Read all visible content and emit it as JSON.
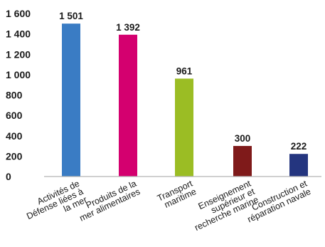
{
  "chart_data": {
    "type": "bar",
    "title": "",
    "xlabel": "",
    "ylabel": "",
    "ylim": [
      0,
      1600
    ],
    "yticks": [
      {
        "value": 0,
        "label": "0"
      },
      {
        "value": 200,
        "label": "200"
      },
      {
        "value": 400,
        "label": "400"
      },
      {
        "value": 600,
        "label": "600"
      },
      {
        "value": 800,
        "label": "800"
      },
      {
        "value": 1000,
        "label": "1 000"
      },
      {
        "value": 1200,
        "label": "1 200"
      },
      {
        "value": 1400,
        "label": "1 400"
      },
      {
        "value": 1600,
        "label": "1 600"
      }
    ],
    "grid": false,
    "legend": "none",
    "categories": [
      {
        "lines": [
          "Activités de",
          "Défense liées à",
          "la mer"
        ]
      },
      {
        "lines": [
          "Produits de la",
          "mer alimentaires"
        ]
      },
      {
        "lines": [
          "Transport",
          "maritime"
        ]
      },
      {
        "lines": [
          "Enseignement",
          "supérieur et",
          "recherche marine"
        ]
      },
      {
        "lines": [
          "Construction et",
          "réparation navale"
        ]
      }
    ],
    "values": [
      1501,
      1392,
      961,
      300,
      222
    ],
    "value_labels": [
      "1 501",
      "1 392",
      "961",
      "300",
      "222"
    ],
    "colors": [
      "#3a7cc4",
      "#d4006f",
      "#9bbd24",
      "#7f1a1a",
      "#24357f"
    ],
    "axis_color": "#b5b5b5"
  }
}
